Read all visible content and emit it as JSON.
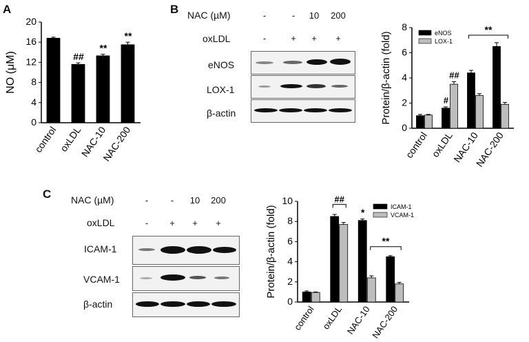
{
  "panels": {
    "a": {
      "letter": "A"
    },
    "b": {
      "letter": "B",
      "nac_label": "NAC (µM)",
      "nac_values": [
        "-",
        "-",
        "10",
        "200"
      ],
      "oxldl_label": "oxLDL",
      "oxldl_values": [
        "-",
        "+",
        "+",
        "+"
      ],
      "blot_rows": [
        "eNOS",
        "LOX-1",
        "β-actin"
      ]
    },
    "c": {
      "letter": "C",
      "nac_label": "NAC (µM)",
      "nac_values": [
        "-",
        "-",
        "10",
        "200"
      ],
      "oxldl_label": "oxLDL",
      "oxldl_values": [
        "-",
        "+",
        "+",
        "+"
      ],
      "blot_rows": [
        "ICAM-1",
        "VCAM-1",
        "β-actin"
      ]
    }
  },
  "chart_data": [
    {
      "id": "A",
      "type": "bar",
      "categories": [
        "control",
        "oxLDL",
        "NAC-10",
        "NAC-200"
      ],
      "values": [
        16.8,
        11.6,
        13.3,
        15.5
      ],
      "errors": [
        0.2,
        0.3,
        0.3,
        0.5
      ],
      "annotations": [
        "",
        "##",
        "**",
        "**"
      ],
      "ylabel": "NO (μM)",
      "ylim": [
        0,
        20
      ],
      "yticks": [
        "0",
        "4",
        "8",
        "12",
        "16",
        "20"
      ],
      "colors": {
        "bar": "#000000"
      }
    },
    {
      "id": "B",
      "type": "bar",
      "categories": [
        "control",
        "oxLDL",
        "NAC-10",
        "NAC-200"
      ],
      "series": [
        {
          "name": "eNOS",
          "values": [
            1.0,
            1.6,
            4.4,
            6.5
          ],
          "errors": [
            0.1,
            0.1,
            0.2,
            0.3
          ],
          "color": "#000000"
        },
        {
          "name": "LOX-1",
          "values": [
            1.05,
            3.5,
            2.6,
            1.9
          ],
          "errors": [
            0.05,
            0.2,
            0.15,
            0.15
          ],
          "color": "#bdbdbd"
        }
      ],
      "annotations": [
        "#",
        "##",
        "**"
      ],
      "ylabel": "Protein/β-actin (fold)",
      "ylim": [
        0,
        8
      ],
      "yticks": [
        "0",
        "2",
        "4",
        "6",
        "8"
      ],
      "legend": "top-left"
    },
    {
      "id": "C",
      "type": "bar",
      "categories": [
        "control",
        "oxLDL",
        "NAC-10",
        "NAC-200"
      ],
      "series": [
        {
          "name": "ICAM-1",
          "values": [
            1.0,
            8.5,
            8.1,
            4.5
          ],
          "errors": [
            0.1,
            0.2,
            0.15,
            0.1
          ],
          "color": "#000000"
        },
        {
          "name": "VCAM-1",
          "values": [
            0.95,
            7.7,
            2.4,
            1.8
          ],
          "errors": [
            0.05,
            0.2,
            0.2,
            0.15
          ],
          "color": "#bdbdbd"
        }
      ],
      "annotations": [
        "##",
        "*",
        "**"
      ],
      "ylabel": "Protein/β-actin (fold)",
      "ylim": [
        0,
        10
      ],
      "yticks": [
        "0",
        "2",
        "4",
        "6",
        "8",
        "10"
      ],
      "legend": "top-right"
    }
  ]
}
